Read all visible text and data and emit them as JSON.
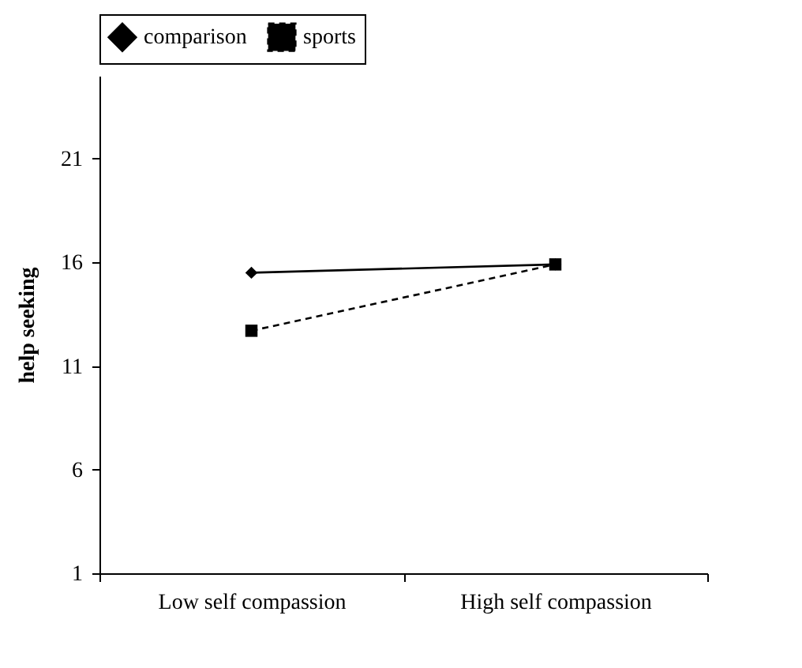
{
  "chart_data": {
    "type": "line",
    "ylabel": "help seeking",
    "categories": [
      "Low self compassion",
      "High self compassion"
    ],
    "series": [
      {
        "name": "comparison",
        "color": "#000000",
        "values": [
          15.5,
          15.9
        ],
        "marker": "diamond",
        "line_style": "solid"
      },
      {
        "name": "sports",
        "color": "#000000",
        "values": [
          12.7,
          15.9
        ],
        "marker": "square",
        "line_style": "dashed"
      }
    ],
    "ylim": [
      1,
      25
    ],
    "yticks": [
      1,
      6,
      11,
      16,
      21
    ],
    "grid": false,
    "legend": "top"
  }
}
